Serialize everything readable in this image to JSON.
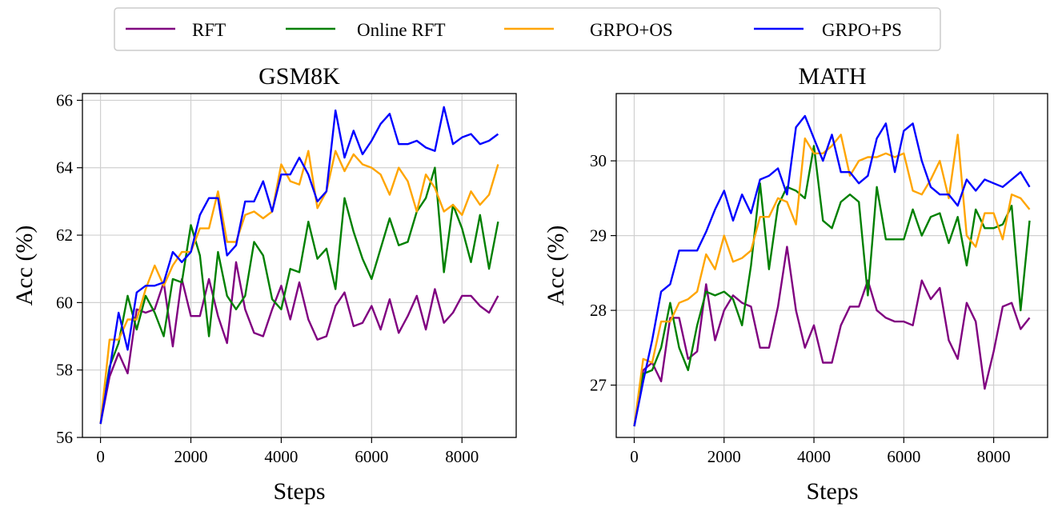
{
  "legend": {
    "items": [
      {
        "label": "RFT",
        "color": "#800080"
      },
      {
        "label": "Online RFT",
        "color": "#008000"
      },
      {
        "label": "GRPO+OS",
        "color": "#FFA500"
      },
      {
        "label": "GRPO+PS",
        "color": "#0000FF"
      }
    ]
  },
  "chart_data": [
    {
      "type": "line",
      "title": "GSM8K",
      "xlabel": "Steps",
      "ylabel": "Acc (%)",
      "xlim": [
        -400,
        9200
      ],
      "ylim": [
        56,
        66.2
      ],
      "xticks": [
        0,
        2000,
        4000,
        6000,
        8000
      ],
      "yticks": [
        56,
        58,
        60,
        62,
        64,
        66
      ],
      "grid": true,
      "x": [
        0,
        200,
        400,
        600,
        800,
        1000,
        1200,
        1400,
        1600,
        1800,
        2000,
        2200,
        2400,
        2600,
        2800,
        3000,
        3200,
        3400,
        3600,
        3800,
        4000,
        4200,
        4400,
        4600,
        4800,
        5000,
        5200,
        5400,
        5600,
        5800,
        6000,
        6200,
        6400,
        6600,
        6800,
        7000,
        7200,
        7400,
        7600,
        7800,
        8000,
        8200,
        8400,
        8600,
        8800
      ],
      "series": [
        {
          "name": "RFT",
          "color": "#800080",
          "values": [
            56.4,
            57.8,
            58.5,
            57.9,
            59.8,
            59.7,
            59.8,
            60.6,
            58.7,
            60.7,
            59.6,
            59.6,
            60.7,
            59.6,
            58.8,
            61.2,
            59.8,
            59.1,
            59.0,
            59.8,
            60.5,
            59.5,
            60.6,
            59.5,
            58.9,
            59.0,
            59.9,
            60.3,
            59.3,
            59.4,
            59.9,
            59.2,
            60.1,
            59.1,
            59.6,
            60.2,
            59.2,
            60.4,
            59.4,
            59.7,
            60.2,
            60.2,
            59.9,
            59.7,
            60.2
          ]
        },
        {
          "name": "Online RFT",
          "color": "#008000",
          "values": [
            56.4,
            58.1,
            58.8,
            60.2,
            59.2,
            60.2,
            59.7,
            59.0,
            60.7,
            60.6,
            62.3,
            61.4,
            59.0,
            61.5,
            60.2,
            59.8,
            60.2,
            61.8,
            61.4,
            60.1,
            59.8,
            61.0,
            60.9,
            62.4,
            61.3,
            61.6,
            60.4,
            63.1,
            62.1,
            61.3,
            60.7,
            61.6,
            62.5,
            61.7,
            61.8,
            62.7,
            63.1,
            64.0,
            60.9,
            62.9,
            62.2,
            61.2,
            62.6,
            61.0,
            62.4
          ]
        },
        {
          "name": "GRPO+OS",
          "color": "#FFA500",
          "values": [
            56.4,
            58.9,
            58.9,
            59.5,
            59.5,
            60.4,
            61.1,
            60.5,
            61.1,
            61.5,
            61.5,
            62.2,
            62.2,
            63.3,
            61.8,
            61.8,
            62.6,
            62.7,
            62.5,
            62.7,
            64.1,
            63.6,
            63.5,
            64.5,
            62.8,
            63.3,
            64.5,
            63.9,
            64.4,
            64.1,
            64.0,
            63.8,
            63.2,
            64.0,
            63.6,
            62.7,
            63.8,
            63.4,
            62.7,
            62.9,
            62.6,
            63.3,
            62.9,
            63.2,
            64.1
          ]
        },
        {
          "name": "GRPO+PS",
          "color": "#0000FF",
          "values": [
            56.4,
            58.0,
            59.7,
            58.6,
            60.3,
            60.5,
            60.5,
            60.6,
            61.5,
            61.2,
            61.5,
            62.6,
            63.1,
            63.1,
            61.4,
            61.7,
            63.0,
            63.0,
            63.6,
            62.7,
            63.8,
            63.8,
            64.3,
            63.8,
            63.0,
            63.3,
            65.7,
            64.3,
            65.1,
            64.4,
            64.8,
            65.3,
            65.6,
            64.7,
            64.7,
            64.8,
            64.6,
            64.5,
            65.8,
            64.7,
            64.9,
            65.0,
            64.7,
            64.8,
            65.0
          ]
        }
      ]
    },
    {
      "type": "line",
      "title": "MATH",
      "xlabel": "Steps",
      "ylabel": "Acc (%)",
      "xlim": [
        -400,
        9200
      ],
      "ylim": [
        26.3,
        30.9
      ],
      "xticks": [
        0,
        2000,
        4000,
        6000,
        8000
      ],
      "yticks": [
        27,
        28,
        29,
        30
      ],
      "grid": true,
      "x": [
        0,
        200,
        400,
        600,
        800,
        1000,
        1200,
        1400,
        1600,
        1800,
        2000,
        2200,
        2400,
        2600,
        2800,
        3000,
        3200,
        3400,
        3600,
        3800,
        4000,
        4200,
        4400,
        4600,
        4800,
        5000,
        5200,
        5400,
        5600,
        5800,
        6000,
        6200,
        6400,
        6600,
        6800,
        7000,
        7200,
        7400,
        7600,
        7800,
        8000,
        8200,
        8400,
        8600,
        8800
      ],
      "series": [
        {
          "name": "RFT",
          "color": "#800080",
          "values": [
            26.45,
            27.2,
            27.3,
            27.05,
            27.9,
            27.9,
            27.35,
            27.45,
            28.35,
            27.6,
            28.0,
            28.2,
            28.1,
            28.05,
            27.5,
            27.5,
            28.05,
            28.85,
            28.0,
            27.5,
            27.8,
            27.3,
            27.3,
            27.8,
            28.05,
            28.05,
            28.4,
            28.0,
            27.9,
            27.85,
            27.85,
            27.8,
            28.4,
            28.15,
            28.3,
            27.6,
            27.35,
            28.1,
            27.85,
            26.95,
            27.45,
            28.05,
            28.1,
            27.75,
            27.9
          ]
        },
        {
          "name": "Online RFT",
          "color": "#008000",
          "values": [
            26.45,
            27.15,
            27.2,
            27.5,
            28.1,
            27.5,
            27.2,
            27.8,
            28.25,
            28.2,
            28.25,
            28.15,
            27.8,
            28.6,
            29.7,
            28.55,
            29.4,
            29.65,
            29.6,
            29.5,
            30.2,
            29.2,
            29.1,
            29.45,
            29.55,
            29.45,
            28.2,
            29.65,
            28.95,
            28.95,
            28.95,
            29.35,
            29.0,
            29.25,
            29.3,
            28.9,
            29.25,
            28.6,
            29.35,
            29.1,
            29.1,
            29.15,
            29.4,
            28.0,
            29.2
          ]
        },
        {
          "name": "GRPO+OS",
          "color": "#FFA500",
          "values": [
            26.45,
            27.35,
            27.3,
            27.85,
            27.85,
            28.1,
            28.15,
            28.25,
            28.75,
            28.55,
            29.0,
            28.65,
            28.7,
            28.8,
            29.25,
            29.25,
            29.5,
            29.45,
            29.15,
            30.3,
            30.1,
            30.1,
            30.2,
            30.35,
            29.8,
            30.0,
            30.05,
            30.05,
            30.1,
            30.05,
            30.1,
            29.6,
            29.55,
            29.75,
            30.0,
            29.5,
            30.35,
            29.0,
            28.85,
            29.3,
            29.3,
            28.95,
            29.55,
            29.5,
            29.35
          ]
        },
        {
          "name": "GRPO+PS",
          "color": "#0000FF",
          "values": [
            26.45,
            27.05,
            27.6,
            28.25,
            28.35,
            28.8,
            28.8,
            28.8,
            29.05,
            29.35,
            29.6,
            29.2,
            29.55,
            29.3,
            29.75,
            29.8,
            29.9,
            29.55,
            30.45,
            30.6,
            30.3,
            30.0,
            30.35,
            29.85,
            29.85,
            29.7,
            29.8,
            30.3,
            30.5,
            29.85,
            30.4,
            30.5,
            30.0,
            29.65,
            29.55,
            29.55,
            29.4,
            29.75,
            29.6,
            29.75,
            29.7,
            29.65,
            29.75,
            29.85,
            29.65
          ]
        }
      ]
    }
  ]
}
